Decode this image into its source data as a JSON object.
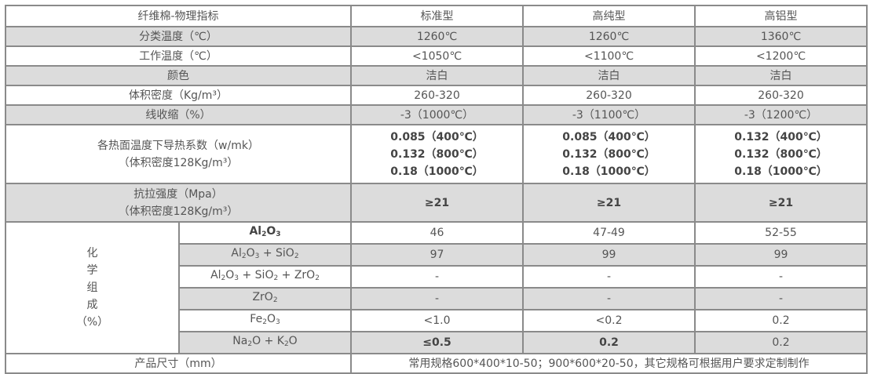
{
  "header": {
    "label": "纤维棉-物理指标",
    "cols": [
      "标准型",
      "高纯型",
      "高铝型"
    ]
  },
  "rows": [
    {
      "label": "分类温度（℃）",
      "values": [
        "1260℃",
        "1260℃",
        "1360℃"
      ]
    },
    {
      "label": "工作温度（℃）",
      "values": [
        "<1050℃",
        "<1100℃",
        "<1200℃"
      ]
    },
    {
      "label": "颜色",
      "values": [
        "洁白",
        "洁白",
        "洁白"
      ]
    },
    {
      "label": "体积密度（Kg/m³）",
      "values": [
        "260-320",
        "260-320",
        "260-320"
      ]
    },
    {
      "label": "线收缩（%）",
      "values": [
        "-3（1000℃）",
        "-3（1100℃）",
        "-3（1200℃）"
      ]
    }
  ],
  "conductivity": {
    "label1": "各热面温度下导热系数（w/mk）",
    "label2": "（体积密度128Kg/m³）",
    "values": [
      [
        "0.085（400℃）",
        "0.132（800℃）",
        "0.18（1000℃）"
      ],
      [
        "0.085（400℃）",
        "0.132（800℃）",
        "0.18（1000℃）"
      ],
      [
        "0.132（400℃）",
        "0.132（800℃）",
        "0.18（1000℃）"
      ]
    ]
  },
  "tensile": {
    "label1": "抗拉强度（Mpa）",
    "label2": "（体积密度128Kg/m³）",
    "values": [
      "≥21",
      "≥21",
      "≥21"
    ]
  },
  "chem": {
    "label": [
      "化",
      "学",
      "组",
      "成",
      "（%）"
    ],
    "rows": [
      {
        "name": [
          "Al",
          "2",
          "O",
          "3",
          ""
        ],
        "values": [
          "46",
          "47-49",
          "52-55"
        ]
      },
      {
        "name": [
          "Al",
          "2",
          "O",
          "3",
          " + SiO",
          "2"
        ],
        "values": [
          "97",
          "99",
          "99"
        ]
      },
      {
        "name": [
          "Al",
          "2",
          "O",
          "3",
          " + SiO",
          "2",
          " + ZrO",
          "2"
        ],
        "values": [
          "-",
          "-",
          "-"
        ]
      },
      {
        "name": [
          "ZrO",
          "2"
        ],
        "values": [
          "-",
          "-",
          "-"
        ]
      },
      {
        "name": [
          "Fe",
          "2",
          "O",
          "3"
        ],
        "values": [
          "<1.0",
          "<0.2",
          "0.2"
        ]
      },
      {
        "name": [
          "Na",
          "2",
          "O + K",
          "2",
          "O"
        ],
        "values": [
          "≤0.5",
          "0.2",
          "0.2"
        ]
      }
    ]
  },
  "size": {
    "label": "产品尺寸（mm）",
    "value": "常用规格600*400*10-50；900*600*20-50，其它规格可根据用户要求定制制作"
  }
}
